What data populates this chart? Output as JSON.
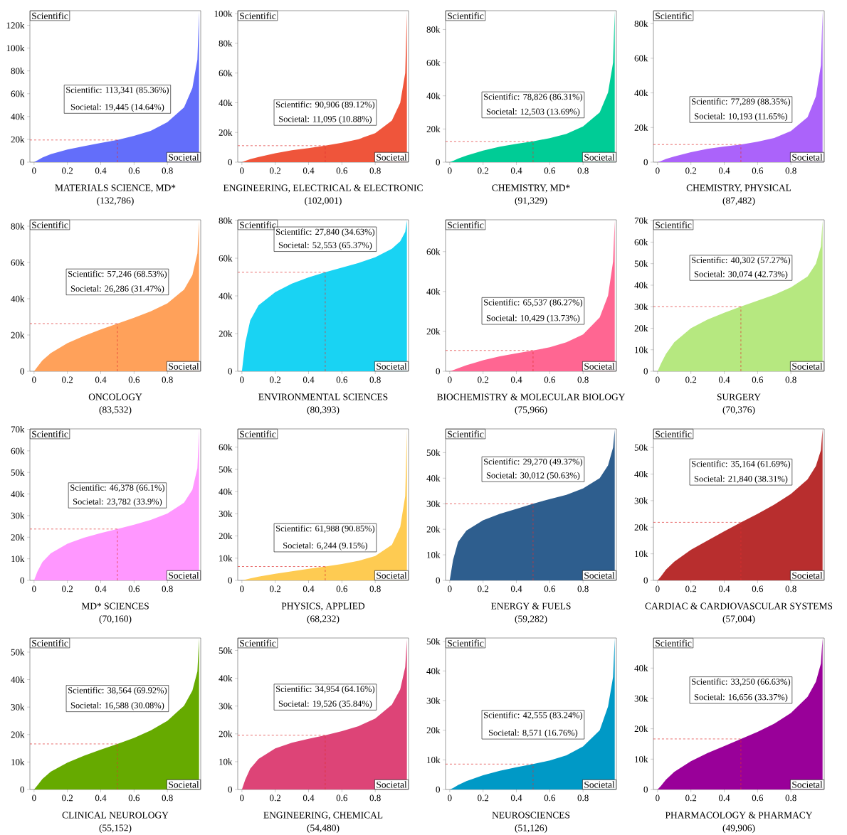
{
  "chart_data": [
    {
      "type": "area",
      "title": "MATERIALS SCIENCE, MD*",
      "subtitle": "(132,786)",
      "color": "#636efa",
      "x": [
        0,
        0.02,
        0.05,
        0.1,
        0.2,
        0.3,
        0.4,
        0.5,
        0.6,
        0.7,
        0.8,
        0.9,
        0.95,
        0.98,
        0.99
      ],
      "values": [
        0,
        1500,
        4000,
        7000,
        11000,
        14000,
        16800,
        19445,
        23000,
        27500,
        35000,
        48000,
        65000,
        90000,
        132000
      ],
      "xlim": [
        -0.025,
        1
      ],
      "ylim": [
        0,
        132786
      ],
      "xticks": [
        0,
        0.2,
        0.4,
        0.6,
        0.8
      ],
      "yticks": [
        0,
        {
          "value": 20000,
          "label": "20k"
        },
        {
          "value": 40000,
          "label": "40k"
        },
        {
          "value": 60000,
          "label": "60k"
        },
        {
          "value": 80000,
          "label": "80k"
        },
        {
          "value": 100000,
          "label": "100k"
        },
        {
          "value": 120000,
          "label": "120k"
        }
      ],
      "annotations": [
        "Scientific",
        "Societal",
        "Scientific: 113,341 (85.36%)",
        "Societal: 19,445 (14.64%)"
      ],
      "ref_lines": [
        {
          "axis": "x",
          "value": 0.5,
          "color": "#e03030",
          "line_style": "dashed"
        },
        {
          "axis": "y",
          "value": 19445,
          "color": "#e03030",
          "line_style": "dashed"
        }
      ]
    },
    {
      "type": "area",
      "title": "ENGINEERING, ELECTRICAL & ELECTRONIC",
      "subtitle": "(102,001)",
      "color": "#ef553b",
      "x": [
        0,
        0.02,
        0.05,
        0.1,
        0.2,
        0.3,
        0.4,
        0.5,
        0.6,
        0.7,
        0.8,
        0.9,
        0.95,
        0.98,
        0.99
      ],
      "values": [
        0,
        800,
        2000,
        3500,
        6000,
        8000,
        9500,
        11095,
        13000,
        15500,
        19500,
        28000,
        40000,
        60000,
        101000
      ],
      "xlim": [
        -0.025,
        1
      ],
      "ylim": [
        0,
        102001
      ],
      "xticks": [
        0,
        0.2,
        0.4,
        0.6,
        0.8
      ],
      "yticks": [
        0,
        {
          "value": 20000,
          "label": "20k"
        },
        {
          "value": 40000,
          "label": "40k"
        },
        {
          "value": 60000,
          "label": "60k"
        },
        {
          "value": 80000,
          "label": "80k"
        },
        {
          "value": 100000,
          "label": "100k"
        }
      ],
      "annotations": [
        "Scientific",
        "Societal",
        "Scientific: 90,906 (89.12%)",
        "Societal: 11,095 (10.88%)"
      ],
      "ref_lines": [
        {
          "axis": "x",
          "value": 0.5,
          "color": "#e03030",
          "line_style": "dashed"
        },
        {
          "axis": "y",
          "value": 11095,
          "color": "#e03030",
          "line_style": "dashed"
        }
      ]
    },
    {
      "type": "area",
      "title": "CHEMISTRY, MD*",
      "subtitle": "(91,329)",
      "color": "#00cc96",
      "x": [
        0,
        0.02,
        0.05,
        0.1,
        0.2,
        0.3,
        0.4,
        0.5,
        0.6,
        0.7,
        0.8,
        0.9,
        0.95,
        0.98,
        0.99
      ],
      "values": [
        0,
        800,
        2200,
        4000,
        7000,
        9300,
        11000,
        12503,
        14500,
        17000,
        21500,
        30000,
        42000,
        60000,
        91000
      ],
      "xlim": [
        -0.025,
        1
      ],
      "ylim": [
        0,
        91329
      ],
      "xticks": [
        0,
        0.2,
        0.4,
        0.6,
        0.8
      ],
      "yticks": [
        0,
        {
          "value": 20000,
          "label": "20k"
        },
        {
          "value": 40000,
          "label": "40k"
        },
        {
          "value": 60000,
          "label": "60k"
        },
        {
          "value": 80000,
          "label": "80k"
        }
      ],
      "annotations": [
        "Scientific",
        "Societal",
        "Scientific: 78,826 (86.31%)",
        "Societal: 12,503 (13.69%)"
      ],
      "ref_lines": [
        {
          "axis": "x",
          "value": 0.5,
          "color": "#e03030",
          "line_style": "dashed"
        },
        {
          "axis": "y",
          "value": 12503,
          "color": "#e03030",
          "line_style": "dashed"
        }
      ]
    },
    {
      "type": "area",
      "title": "CHEMISTRY, PHYSICAL",
      "subtitle": "(87,482)",
      "color": "#ab63fa",
      "x": [
        0,
        0.02,
        0.05,
        0.1,
        0.2,
        0.3,
        0.4,
        0.5,
        0.6,
        0.7,
        0.8,
        0.9,
        0.95,
        0.98,
        0.99
      ],
      "values": [
        0,
        600,
        1800,
        3300,
        5800,
        7700,
        9000,
        10193,
        11800,
        14000,
        18000,
        26000,
        38000,
        56000,
        87000
      ],
      "xlim": [
        -0.025,
        1
      ],
      "ylim": [
        0,
        87482
      ],
      "xticks": [
        0,
        0.2,
        0.4,
        0.6,
        0.8
      ],
      "yticks": [
        0,
        {
          "value": 20000,
          "label": "20k"
        },
        {
          "value": 40000,
          "label": "40k"
        },
        {
          "value": 60000,
          "label": "60k"
        },
        {
          "value": 80000,
          "label": "80k"
        }
      ],
      "annotations": [
        "Scientific",
        "Societal",
        "Scientific: 77,289 (88.35%)",
        "Societal: 10,193 (11.65%)"
      ],
      "ref_lines": [
        {
          "axis": "x",
          "value": 0.5,
          "color": "#e03030",
          "line_style": "dashed"
        },
        {
          "axis": "y",
          "value": 10193,
          "color": "#e03030",
          "line_style": "dashed"
        }
      ]
    },
    {
      "type": "area",
      "title": "ONCOLOGY",
      "subtitle": "(83,532)",
      "color": "#ffa15a",
      "x": [
        0,
        0.02,
        0.05,
        0.1,
        0.2,
        0.3,
        0.4,
        0.5,
        0.6,
        0.7,
        0.8,
        0.9,
        0.95,
        0.98,
        0.99
      ],
      "values": [
        0,
        2500,
        6000,
        10000,
        15500,
        19500,
        23000,
        26286,
        29500,
        33000,
        37500,
        45000,
        53000,
        65000,
        83000
      ],
      "xlim": [
        -0.025,
        1
      ],
      "ylim": [
        0,
        83532
      ],
      "xticks": [
        0,
        0.2,
        0.4,
        0.6,
        0.8
      ],
      "yticks": [
        0,
        {
          "value": 20000,
          "label": "20k"
        },
        {
          "value": 40000,
          "label": "40k"
        },
        {
          "value": 60000,
          "label": "60k"
        },
        {
          "value": 80000,
          "label": "80k"
        }
      ],
      "annotations": [
        "Scientific",
        "Societal",
        "Scientific: 57,246 (68.53%)",
        "Societal: 26,286 (31.47%)"
      ],
      "ref_lines": [
        {
          "axis": "x",
          "value": 0.5,
          "color": "#e03030",
          "line_style": "dashed"
        },
        {
          "axis": "y",
          "value": 26286,
          "color": "#e03030",
          "line_style": "dashed"
        }
      ]
    },
    {
      "type": "area",
      "title": "ENVIRONMENTAL SCIENCES",
      "subtitle": "(80,393)",
      "color": "#19d3f3",
      "x": [
        0,
        0.02,
        0.05,
        0.1,
        0.2,
        0.3,
        0.4,
        0.5,
        0.6,
        0.7,
        0.8,
        0.9,
        0.95,
        0.98,
        0.99
      ],
      "values": [
        0,
        15000,
        27000,
        35000,
        42000,
        46500,
        49800,
        52553,
        55000,
        57500,
        60500,
        65000,
        69000,
        74000,
        80000
      ],
      "xlim": [
        -0.025,
        1
      ],
      "ylim": [
        0,
        80393
      ],
      "xticks": [
        0,
        0.2,
        0.4,
        0.6,
        0.8
      ],
      "yticks": [
        0,
        {
          "value": 20000,
          "label": "20k"
        },
        {
          "value": 40000,
          "label": "40k"
        },
        {
          "value": 60000,
          "label": "60k"
        },
        {
          "value": 80000,
          "label": "80k"
        }
      ],
      "annotations": [
        "Scientific",
        "Societal",
        "Scientific: 27,840 (34.63%)",
        "Societal: 52,553 (65.37%)"
      ],
      "ref_lines": [
        {
          "axis": "x",
          "value": 0.5,
          "color": "#e03030",
          "line_style": "dashed"
        },
        {
          "axis": "y",
          "value": 52553,
          "color": "#e03030",
          "line_style": "dashed"
        }
      ]
    },
    {
      "type": "area",
      "title": "BIOCHEMISTRY & MOLECULAR BIOLOGY",
      "subtitle": "(75,966)",
      "color": "#ff6692",
      "x": [
        0,
        0.02,
        0.05,
        0.1,
        0.2,
        0.3,
        0.4,
        0.5,
        0.6,
        0.7,
        0.8,
        0.9,
        0.95,
        0.98,
        0.99
      ],
      "values": [
        0,
        500,
        1500,
        3000,
        5500,
        7500,
        9000,
        10429,
        12000,
        14500,
        18500,
        27000,
        38000,
        55000,
        75500
      ],
      "xlim": [
        -0.025,
        1
      ],
      "ylim": [
        0,
        75966
      ],
      "xticks": [
        0,
        0.2,
        0.4,
        0.6,
        0.8
      ],
      "yticks": [
        0,
        {
          "value": 20000,
          "label": "20k"
        },
        {
          "value": 40000,
          "label": "40k"
        },
        {
          "value": 60000,
          "label": "60k"
        }
      ],
      "annotations": [
        "Scientific",
        "Societal",
        "Scientific: 65,537 (86.27%)",
        "Societal: 10,429 (13.73%)"
      ],
      "ref_lines": [
        {
          "axis": "x",
          "value": 0.5,
          "color": "#e03030",
          "line_style": "dashed"
        },
        {
          "axis": "y",
          "value": 10429,
          "color": "#e03030",
          "line_style": "dashed"
        }
      ]
    },
    {
      "type": "area",
      "title": "SURGERY",
      "subtitle": "(70,376)",
      "color": "#b6e880",
      "x": [
        0,
        0.02,
        0.05,
        0.1,
        0.2,
        0.3,
        0.4,
        0.5,
        0.6,
        0.7,
        0.8,
        0.9,
        0.95,
        0.98,
        0.99
      ],
      "values": [
        0,
        3500,
        8000,
        13500,
        20000,
        24000,
        27200,
        30074,
        32800,
        35500,
        39000,
        44000,
        50000,
        58000,
        70000
      ],
      "xlim": [
        -0.025,
        1
      ],
      "ylim": [
        0,
        70376
      ],
      "xticks": [
        0,
        0.2,
        0.4,
        0.6,
        0.8
      ],
      "yticks": [
        0,
        {
          "value": 10000,
          "label": "10k"
        },
        {
          "value": 20000,
          "label": "20k"
        },
        {
          "value": 30000,
          "label": "30k"
        },
        {
          "value": 40000,
          "label": "40k"
        },
        {
          "value": 50000,
          "label": "50k"
        },
        {
          "value": 60000,
          "label": "60k"
        },
        {
          "value": 70000,
          "label": "70k"
        }
      ],
      "annotations": [
        "Scientific",
        "Societal",
        "Scientific: 40,302 (57.27%)",
        "Societal: 30,074 (42.73%)"
      ],
      "ref_lines": [
        {
          "axis": "x",
          "value": 0.5,
          "color": "#e03030",
          "line_style": "dashed"
        },
        {
          "axis": "y",
          "value": 30074,
          "color": "#e03030",
          "line_style": "dashed"
        }
      ]
    },
    {
      "type": "area",
      "title": "MD* SCIENCES",
      "subtitle": "(70,160)",
      "color": "#ff97ff",
      "x": [
        0,
        0.02,
        0.05,
        0.1,
        0.2,
        0.3,
        0.4,
        0.5,
        0.6,
        0.7,
        0.8,
        0.9,
        0.95,
        0.98,
        0.99
      ],
      "values": [
        0,
        4000,
        8500,
        12500,
        17000,
        19800,
        21900,
        23782,
        25800,
        28000,
        31000,
        36000,
        42000,
        52000,
        70000
      ],
      "xlim": [
        -0.025,
        1
      ],
      "ylim": [
        0,
        70160
      ],
      "xticks": [
        0,
        0.2,
        0.4,
        0.6,
        0.8
      ],
      "yticks": [
        0,
        {
          "value": 10000,
          "label": "10k"
        },
        {
          "value": 20000,
          "label": "20k"
        },
        {
          "value": 30000,
          "label": "30k"
        },
        {
          "value": 40000,
          "label": "40k"
        },
        {
          "value": 50000,
          "label": "50k"
        },
        {
          "value": 60000,
          "label": "60k"
        },
        {
          "value": 70000,
          "label": "70k"
        }
      ],
      "annotations": [
        "Scientific",
        "Societal",
        "Scientific: 46,378 (66.1%)",
        "Societal: 23,782 (33.9%)"
      ],
      "ref_lines": [
        {
          "axis": "x",
          "value": 0.5,
          "color": "#e03030",
          "line_style": "dashed"
        },
        {
          "axis": "y",
          "value": 23782,
          "color": "#e03030",
          "line_style": "dashed"
        }
      ]
    },
    {
      "type": "area",
      "title": "PHYSICS, APPLIED",
      "subtitle": "(68,232)",
      "color": "#fecb52",
      "x": [
        0,
        0.02,
        0.05,
        0.1,
        0.2,
        0.3,
        0.4,
        0.5,
        0.6,
        0.7,
        0.8,
        0.9,
        0.95,
        0.98,
        0.99
      ],
      "values": [
        0,
        300,
        900,
        1700,
        3000,
        4100,
        5200,
        6244,
        7400,
        8800,
        11000,
        16000,
        24000,
        38000,
        68000
      ],
      "xlim": [
        -0.025,
        1
      ],
      "ylim": [
        0,
        68232
      ],
      "xticks": [
        0,
        0.2,
        0.4,
        0.6,
        0.8
      ],
      "yticks": [
        0,
        {
          "value": 10000,
          "label": "10k"
        },
        {
          "value": 20000,
          "label": "20k"
        },
        {
          "value": 30000,
          "label": "30k"
        },
        {
          "value": 40000,
          "label": "40k"
        },
        {
          "value": 50000,
          "label": "50k"
        },
        {
          "value": 60000,
          "label": "60k"
        }
      ],
      "annotations": [
        "Scientific",
        "Societal",
        "Scientific: 61,988 (90.85%)",
        "Societal: 6,244 (9.15%)"
      ],
      "ref_lines": [
        {
          "axis": "x",
          "value": 0.5,
          "color": "#e03030",
          "line_style": "dashed"
        },
        {
          "axis": "y",
          "value": 6244,
          "color": "#e03030",
          "line_style": "dashed"
        }
      ]
    },
    {
      "type": "area",
      "title": "ENERGY & FUELS",
      "subtitle": "(59,282)",
      "color": "#2e5e8e",
      "x": [
        0,
        0.02,
        0.05,
        0.1,
        0.2,
        0.3,
        0.4,
        0.5,
        0.6,
        0.7,
        0.8,
        0.9,
        0.95,
        0.98,
        0.99
      ],
      "values": [
        0,
        8000,
        15000,
        19500,
        23500,
        26000,
        28000,
        30012,
        31800,
        33500,
        36000,
        40000,
        45000,
        52000,
        59000
      ],
      "xlim": [
        -0.025,
        1
      ],
      "ylim": [
        0,
        59282
      ],
      "xticks": [
        0,
        0.2,
        0.4,
        0.6,
        0.8
      ],
      "yticks": [
        0,
        {
          "value": 10000,
          "label": "10k"
        },
        {
          "value": 20000,
          "label": "20k"
        },
        {
          "value": 30000,
          "label": "30k"
        },
        {
          "value": 40000,
          "label": "40k"
        },
        {
          "value": 50000,
          "label": "50k"
        }
      ],
      "annotations": [
        "Scientific",
        "Societal",
        "Scientific: 29,270 (49.37%)",
        "Societal: 30,012 (50.63%)"
      ],
      "ref_lines": [
        {
          "axis": "x",
          "value": 0.5,
          "color": "#e03030",
          "line_style": "dashed"
        },
        {
          "axis": "y",
          "value": 30012,
          "color": "#e03030",
          "line_style": "dashed"
        }
      ]
    },
    {
      "type": "area",
      "title": "CARDIAC & CARDIOVASCULAR SYSTEMS",
      "subtitle": "(57,004)",
      "color": "#b82e2e",
      "x": [
        0,
        0.02,
        0.05,
        0.1,
        0.2,
        0.3,
        0.4,
        0.5,
        0.6,
        0.7,
        0.8,
        0.9,
        0.95,
        0.98,
        0.99
      ],
      "values": [
        0,
        1500,
        4000,
        7000,
        11500,
        15000,
        18500,
        21840,
        25000,
        28500,
        32500,
        38000,
        43000,
        49000,
        57000
      ],
      "xlim": [
        -0.025,
        1
      ],
      "ylim": [
        0,
        57004
      ],
      "xticks": [
        0,
        0.2,
        0.4,
        0.6,
        0.8
      ],
      "yticks": [
        0,
        {
          "value": 10000,
          "label": "10k"
        },
        {
          "value": 20000,
          "label": "20k"
        },
        {
          "value": 30000,
          "label": "30k"
        },
        {
          "value": 40000,
          "label": "40k"
        },
        {
          "value": 50000,
          "label": "50k"
        }
      ],
      "annotations": [
        "Scientific",
        "Societal",
        "Scientific: 35,164 (61.69%)",
        "Societal: 21,840 (38.31%)"
      ],
      "ref_lines": [
        {
          "axis": "x",
          "value": 0.5,
          "color": "#e03030",
          "line_style": "dashed"
        },
        {
          "axis": "y",
          "value": 21840,
          "color": "#e03030",
          "line_style": "dashed"
        }
      ]
    },
    {
      "type": "area",
      "title": "CLINICAL NEUROLOGY",
      "subtitle": "(55,152)",
      "color": "#66aa00",
      "x": [
        0,
        0.02,
        0.05,
        0.1,
        0.2,
        0.3,
        0.4,
        0.5,
        0.6,
        0.7,
        0.8,
        0.9,
        0.95,
        0.98,
        0.99
      ],
      "values": [
        0,
        1500,
        3800,
        6500,
        9800,
        12300,
        14500,
        16588,
        18800,
        21500,
        25000,
        30500,
        36000,
        43000,
        55000
      ],
      "xlim": [
        -0.025,
        1
      ],
      "ylim": [
        0,
        55152
      ],
      "xticks": [
        0,
        0.2,
        0.4,
        0.6,
        0.8
      ],
      "yticks": [
        0,
        {
          "value": 10000,
          "label": "10k"
        },
        {
          "value": 20000,
          "label": "20k"
        },
        {
          "value": 30000,
          "label": "30k"
        },
        {
          "value": 40000,
          "label": "40k"
        },
        {
          "value": 50000,
          "label": "50k"
        }
      ],
      "annotations": [
        "Scientific",
        "Societal",
        "Scientific: 38,564 (69.92%)",
        "Societal: 16,588 (30.08%)"
      ],
      "ref_lines": [
        {
          "axis": "x",
          "value": 0.5,
          "color": "#e03030",
          "line_style": "dashed"
        },
        {
          "axis": "y",
          "value": 16588,
          "color": "#e03030",
          "line_style": "dashed"
        }
      ]
    },
    {
      "type": "area",
      "title": "ENGINEERING, CHEMICAL",
      "subtitle": "(54,480)",
      "color": "#dd4477",
      "x": [
        0,
        0.02,
        0.05,
        0.1,
        0.2,
        0.3,
        0.4,
        0.5,
        0.6,
        0.7,
        0.8,
        0.9,
        0.95,
        0.98,
        0.99
      ],
      "values": [
        0,
        3500,
        7500,
        11000,
        14800,
        16800,
        18200,
        19526,
        21000,
        22800,
        25500,
        30500,
        36000,
        44000,
        54000
      ],
      "xlim": [
        -0.025,
        1
      ],
      "ylim": [
        0,
        54480
      ],
      "xticks": [
        0,
        0.2,
        0.4,
        0.6,
        0.8
      ],
      "yticks": [
        0,
        {
          "value": 10000,
          "label": "10k"
        },
        {
          "value": 20000,
          "label": "20k"
        },
        {
          "value": 30000,
          "label": "30k"
        },
        {
          "value": 40000,
          "label": "40k"
        },
        {
          "value": 50000,
          "label": "50k"
        }
      ],
      "annotations": [
        "Scientific",
        "Societal",
        "Scientific: 34,954 (64.16%)",
        "Societal: 19,526 (35.84%)"
      ],
      "ref_lines": [
        {
          "axis": "x",
          "value": 0.5,
          "color": "#e03030",
          "line_style": "dashed"
        },
        {
          "axis": "y",
          "value": 19526,
          "color": "#e03030",
          "line_style": "dashed"
        }
      ]
    },
    {
      "type": "area",
      "title": "NEUROSCIENCES",
      "subtitle": "(51,126)",
      "color": "#0099c6",
      "x": [
        0,
        0.02,
        0.05,
        0.1,
        0.2,
        0.3,
        0.4,
        0.5,
        0.6,
        0.7,
        0.8,
        0.9,
        0.95,
        0.98,
        0.99
      ],
      "values": [
        0,
        500,
        1500,
        2800,
        4800,
        6300,
        7500,
        8571,
        9800,
        11500,
        14500,
        20000,
        28000,
        38000,
        51000
      ],
      "xlim": [
        -0.025,
        1
      ],
      "ylim": [
        0,
        51126
      ],
      "xticks": [
        0,
        0.2,
        0.4,
        0.6,
        0.8
      ],
      "yticks": [
        0,
        {
          "value": 10000,
          "label": "10k"
        },
        {
          "value": 20000,
          "label": "20k"
        },
        {
          "value": 30000,
          "label": "30k"
        },
        {
          "value": 40000,
          "label": "40k"
        },
        {
          "value": 50000,
          "label": "50k"
        }
      ],
      "annotations": [
        "Scientific",
        "Societal",
        "Scientific: 42,555 (83.24%)",
        "Societal: 8,571 (16.76%)"
      ],
      "ref_lines": [
        {
          "axis": "x",
          "value": 0.5,
          "color": "#e03030",
          "line_style": "dashed"
        },
        {
          "axis": "y",
          "value": 8571,
          "color": "#e03030",
          "line_style": "dashed"
        }
      ]
    },
    {
      "type": "area",
      "title": "PHARMACOLOGY & PHARMACY",
      "subtitle": "(49,906)",
      "color": "#990099",
      "x": [
        0,
        0.02,
        0.05,
        0.1,
        0.2,
        0.3,
        0.4,
        0.5,
        0.6,
        0.7,
        0.8,
        0.9,
        0.95,
        0.98,
        0.99
      ],
      "values": [
        0,
        1200,
        3200,
        5800,
        9300,
        12000,
        14300,
        16656,
        19000,
        21700,
        25200,
        30500,
        35500,
        41500,
        49800
      ],
      "xlim": [
        -0.025,
        1
      ],
      "ylim": [
        0,
        49906
      ],
      "xticks": [
        0,
        0.2,
        0.4,
        0.6,
        0.8
      ],
      "yticks": [
        0,
        {
          "value": 10000,
          "label": "10k"
        },
        {
          "value": 20000,
          "label": "20k"
        },
        {
          "value": 30000,
          "label": "30k"
        },
        {
          "value": 40000,
          "label": "40k"
        }
      ],
      "annotations": [
        "Scientific",
        "Societal",
        "Scientific: 33,250 (66.63%)",
        "Societal: 16,656 (33.37%)"
      ],
      "ref_lines": [
        {
          "axis": "x",
          "value": 0.5,
          "color": "#e03030",
          "line_style": "dashed"
        },
        {
          "axis": "y",
          "value": 16656,
          "color": "#e03030",
          "line_style": "dashed"
        }
      ]
    }
  ]
}
